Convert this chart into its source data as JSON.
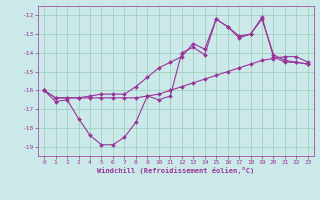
{
  "xlabel": "Windchill (Refroidissement éolien,°C)",
  "x_ticks": [
    0,
    1,
    2,
    3,
    4,
    5,
    6,
    7,
    8,
    9,
    10,
    11,
    12,
    13,
    14,
    15,
    16,
    17,
    18,
    19,
    20,
    21,
    22,
    23
  ],
  "ylim": [
    -19.5,
    -11.5
  ],
  "xlim": [
    -0.5,
    23.5
  ],
  "yticks": [
    -19,
    -18,
    -17,
    -16,
    -15,
    -14,
    -13,
    -12
  ],
  "bg_color": "#cbe9e9",
  "grid_color": "#99ccbb",
  "line_color": "#993399",
  "line1": {
    "x": [
      0,
      1,
      2,
      3,
      4,
      5,
      6,
      7,
      8,
      9,
      10,
      11,
      12,
      13,
      14,
      15,
      16,
      17,
      18,
      19,
      20,
      21,
      22,
      23
    ],
    "y": [
      -16.0,
      -16.6,
      -16.5,
      -17.5,
      -18.4,
      -18.9,
      -18.9,
      -18.5,
      -17.7,
      -16.3,
      -16.5,
      -16.3,
      -14.0,
      -13.7,
      -14.1,
      -12.2,
      -12.6,
      -13.1,
      -13.0,
      -12.2,
      -14.1,
      -14.4,
      -14.5,
      -14.6
    ]
  },
  "line2": {
    "x": [
      0,
      1,
      2,
      3,
      4,
      5,
      6,
      7,
      8,
      9,
      10,
      11,
      12,
      13,
      14,
      15,
      16,
      17,
      18,
      19,
      20,
      21,
      22,
      23
    ],
    "y": [
      -16.0,
      -16.4,
      -16.4,
      -16.4,
      -16.4,
      -16.4,
      -16.4,
      -16.4,
      -16.4,
      -16.3,
      -16.2,
      -16.0,
      -15.8,
      -15.6,
      -15.4,
      -15.2,
      -15.0,
      -14.8,
      -14.6,
      -14.4,
      -14.3,
      -14.2,
      -14.2,
      -14.5
    ]
  },
  "line3": {
    "x": [
      0,
      1,
      2,
      3,
      4,
      5,
      6,
      7,
      8,
      9,
      10,
      11,
      12,
      13,
      14,
      15,
      16,
      17,
      18,
      19,
      20,
      21,
      22,
      23
    ],
    "y": [
      -16.0,
      -16.4,
      -16.4,
      -16.4,
      -16.3,
      -16.2,
      -16.2,
      -16.2,
      -15.8,
      -15.3,
      -14.8,
      -14.5,
      -14.2,
      -13.5,
      -13.8,
      -12.2,
      -12.6,
      -13.2,
      -13.0,
      -12.1,
      -14.2,
      -14.5,
      -14.5,
      -14.6
    ]
  },
  "marker_size": 2,
  "line_width": 0.8,
  "tick_fontsize": 4.5,
  "xlabel_fontsize": 5.0
}
